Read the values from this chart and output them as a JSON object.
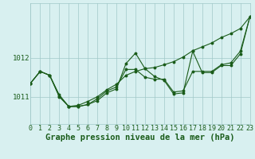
{
  "xlabel": "Graphe pression niveau de la mer (hPa)",
  "hours": [
    0,
    1,
    2,
    3,
    4,
    5,
    6,
    7,
    8,
    9,
    10,
    11,
    12,
    13,
    14,
    15,
    16,
    17,
    18,
    19,
    20,
    21,
    22,
    23
  ],
  "line_jagged": [
    1011.35,
    1011.65,
    1011.55,
    1011.0,
    1010.75,
    1010.75,
    1010.8,
    1010.9,
    1011.1,
    1011.2,
    1011.85,
    1012.12,
    1011.72,
    1011.52,
    1011.42,
    1011.07,
    1011.1,
    1012.17,
    1011.62,
    1011.62,
    1011.8,
    1011.8,
    1012.1,
    1013.05
  ],
  "line_smooth": [
    1011.35,
    1011.65,
    1011.55,
    1011.05,
    1010.75,
    1010.75,
    1010.8,
    1010.95,
    1011.15,
    1011.25,
    1011.7,
    1011.7,
    1011.5,
    1011.45,
    1011.45,
    1011.12,
    1011.15,
    1011.65,
    1011.65,
    1011.65,
    1011.82,
    1011.87,
    1012.17,
    1013.05
  ],
  "line_trend": [
    1011.35,
    1011.65,
    1011.55,
    1011.02,
    1010.75,
    1010.78,
    1010.88,
    1011.0,
    1011.18,
    1011.32,
    1011.55,
    1011.65,
    1011.72,
    1011.75,
    1011.82,
    1011.9,
    1012.02,
    1012.18,
    1012.28,
    1012.38,
    1012.52,
    1012.62,
    1012.75,
    1013.05
  ],
  "line_color": "#1a5c1a",
  "bg_color": "#d8f0f0",
  "grid_color": "#a0c8c8",
  "yticks": [
    1011,
    1012
  ],
  "ylim": [
    1010.3,
    1013.4
  ],
  "xlim": [
    0,
    23
  ],
  "title_fontsize": 7.5,
  "tick_fontsize": 6.5
}
